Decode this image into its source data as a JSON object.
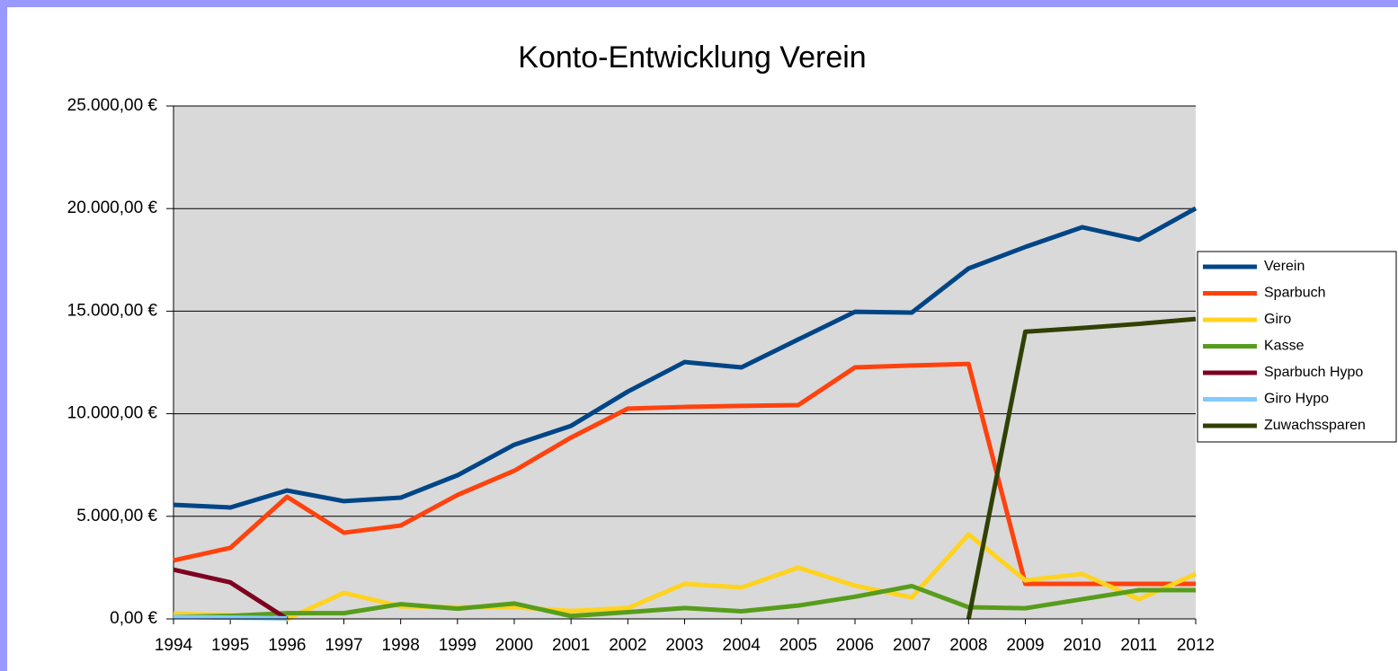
{
  "chart_data": {
    "type": "line",
    "title": "Konto-Entwicklung Verein",
    "categories": [
      "1994",
      "1995",
      "1996",
      "1997",
      "1998",
      "1999",
      "2000",
      "2001",
      "2002",
      "2003",
      "2004",
      "2005",
      "2006",
      "2007",
      "2008",
      "2009",
      "2010",
      "2011",
      "2012"
    ],
    "ylim": [
      0,
      25000
    ],
    "yticks": [
      {
        "value": 0,
        "label": "0,00 €"
      },
      {
        "value": 5000,
        "label": "5.000,00 €"
      },
      {
        "value": 10000,
        "label": "10.000,00 €"
      },
      {
        "value": 15000,
        "label": "15.000,00 €"
      },
      {
        "value": 20000,
        "label": "20.000,00 €"
      },
      {
        "value": 25000,
        "label": "25.000,00 €"
      }
    ],
    "grid": true,
    "legend": "right",
    "series": [
      {
        "name": "Verein",
        "color": "#004586",
        "values": [
          5560,
          5430,
          6260,
          5740,
          5910,
          7000,
          8490,
          9410,
          11080,
          12520,
          12260,
          13620,
          14970,
          14930,
          17080,
          18130,
          19090,
          18480,
          20010
        ]
      },
      {
        "name": "Sparbuch",
        "color": "#ff420e",
        "values": [
          2850,
          3460,
          5950,
          4200,
          4550,
          6040,
          7220,
          8840,
          10250,
          10330,
          10380,
          10420,
          12260,
          12350,
          12430,
          1710,
          1710,
          1710,
          1710
        ]
      },
      {
        "name": "Giro",
        "color": "#ffd320",
        "values": [
          260,
          180,
          0,
          1270,
          610,
          570,
          570,
          390,
          530,
          1710,
          1530,
          2500,
          1620,
          1050,
          4120,
          1880,
          2190,
          960,
          2190
        ]
      },
      {
        "name": "Kasse",
        "color": "#579d1c",
        "values": [
          100,
          150,
          280,
          280,
          720,
          500,
          750,
          140,
          330,
          530,
          370,
          650,
          1080,
          1600,
          570,
          520,
          960,
          1400,
          1400
        ]
      },
      {
        "name": "Sparbuch Hypo",
        "color": "#7e0021",
        "values": [
          2400,
          1780,
          0,
          null,
          null,
          null,
          null,
          null,
          null,
          null,
          null,
          null,
          null,
          null,
          null,
          null,
          null,
          null,
          null
        ]
      },
      {
        "name": "Giro Hypo",
        "color": "#83caff",
        "values": [
          100,
          60,
          30,
          null,
          null,
          null,
          null,
          null,
          null,
          null,
          null,
          null,
          null,
          null,
          null,
          null,
          null,
          null,
          null
        ]
      },
      {
        "name": "Zuwachssparen",
        "color": "#314004",
        "values": [
          null,
          null,
          null,
          null,
          null,
          null,
          null,
          null,
          null,
          null,
          null,
          null,
          null,
          null,
          0,
          14000,
          14180,
          14380,
          14620
        ]
      }
    ]
  }
}
